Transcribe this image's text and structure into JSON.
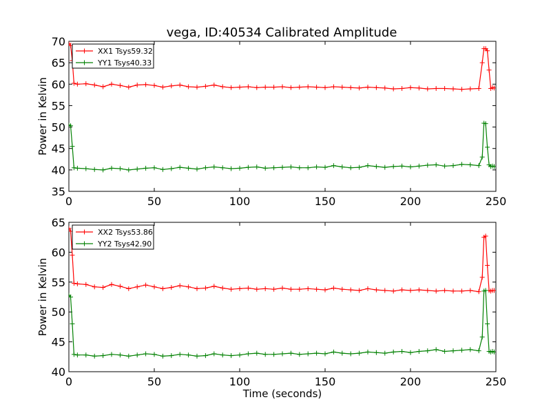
{
  "chart_data": [
    {
      "type": "line",
      "title": "vega, ID:40534 Calibrated Amplitude",
      "xlabel": "",
      "ylabel": "Power in Kelvin",
      "xlim": [
        0,
        250
      ],
      "ylim": [
        35,
        70
      ],
      "xticks": [
        "0",
        "50",
        "100",
        "150",
        "200",
        "250"
      ],
      "yticks": [
        "35",
        "40",
        "45",
        "50",
        "55",
        "60",
        "65",
        "70"
      ],
      "legend_position": "top-left",
      "grid": false,
      "series": [
        {
          "name": "XX1 Tsys59.32",
          "color": "#ff0000",
          "x": [
            0,
            1,
            2,
            3,
            5,
            10,
            15,
            20,
            25,
            30,
            35,
            40,
            45,
            50,
            55,
            60,
            65,
            70,
            75,
            80,
            85,
            90,
            95,
            100,
            105,
            110,
            115,
            120,
            125,
            130,
            135,
            140,
            145,
            150,
            155,
            160,
            165,
            170,
            175,
            180,
            185,
            190,
            195,
            200,
            205,
            210,
            215,
            220,
            225,
            230,
            235,
            240,
            242,
            243,
            244,
            245,
            246,
            247,
            248,
            249
          ],
          "y": [
            69.5,
            69.0,
            65.5,
            60.2,
            60.0,
            60.1,
            59.8,
            59.4,
            60.0,
            59.7,
            59.3,
            59.8,
            59.9,
            59.7,
            59.3,
            59.6,
            59.8,
            59.4,
            59.3,
            59.5,
            59.8,
            59.4,
            59.2,
            59.3,
            59.4,
            59.2,
            59.3,
            59.3,
            59.4,
            59.2,
            59.3,
            59.4,
            59.3,
            59.2,
            59.4,
            59.3,
            59.2,
            59.1,
            59.3,
            59.2,
            59.1,
            58.9,
            59.0,
            59.2,
            59.1,
            58.9,
            59.0,
            59.0,
            58.9,
            58.8,
            58.9,
            59.0,
            65.0,
            68.3,
            68.3,
            67.8,
            63.3,
            59.0,
            59.2,
            59.1
          ]
        },
        {
          "name": "YY1 Tsys40.33",
          "color": "#008000",
          "x": [
            0,
            1,
            2,
            3,
            5,
            10,
            15,
            20,
            25,
            30,
            35,
            40,
            45,
            50,
            55,
            60,
            65,
            70,
            75,
            80,
            85,
            90,
            95,
            100,
            105,
            110,
            115,
            120,
            125,
            130,
            135,
            140,
            145,
            150,
            155,
            160,
            165,
            170,
            175,
            180,
            185,
            190,
            195,
            200,
            205,
            210,
            215,
            220,
            225,
            230,
            235,
            240,
            242,
            243,
            244,
            245,
            246,
            247,
            248,
            249
          ],
          "y": [
            50.5,
            50.3,
            45.5,
            40.5,
            40.4,
            40.3,
            40.1,
            40.0,
            40.4,
            40.3,
            40.0,
            40.2,
            40.4,
            40.5,
            40.1,
            40.3,
            40.6,
            40.4,
            40.2,
            40.5,
            40.7,
            40.5,
            40.3,
            40.4,
            40.6,
            40.7,
            40.4,
            40.5,
            40.6,
            40.7,
            40.5,
            40.5,
            40.7,
            40.6,
            41.0,
            40.7,
            40.5,
            40.6,
            41.0,
            40.8,
            40.6,
            40.8,
            40.9,
            40.7,
            40.9,
            41.1,
            41.2,
            40.9,
            41.0,
            41.3,
            41.2,
            41.0,
            43.0,
            50.9,
            50.8,
            45.3,
            41.2,
            40.8,
            40.9,
            40.8
          ]
        }
      ]
    },
    {
      "type": "line",
      "title": "",
      "xlabel": "Time (seconds)",
      "ylabel": "Power in Kelvin",
      "xlim": [
        0,
        250
      ],
      "ylim": [
        40,
        65
      ],
      "xticks": [
        "0",
        "50",
        "100",
        "150",
        "200",
        "250"
      ],
      "yticks": [
        "40",
        "45",
        "50",
        "55",
        "60",
        "65"
      ],
      "legend_position": "top-left",
      "grid": false,
      "series": [
        {
          "name": "XX2 Tsys53.86",
          "color": "#ff0000",
          "x": [
            0,
            1,
            2,
            3,
            5,
            10,
            15,
            20,
            25,
            30,
            35,
            40,
            45,
            50,
            55,
            60,
            65,
            70,
            75,
            80,
            85,
            90,
            95,
            100,
            105,
            110,
            115,
            120,
            125,
            130,
            135,
            140,
            145,
            150,
            155,
            160,
            165,
            170,
            175,
            180,
            185,
            190,
            195,
            200,
            205,
            210,
            215,
            220,
            225,
            230,
            235,
            240,
            242,
            243,
            244,
            245,
            246,
            247,
            248,
            249
          ],
          "y": [
            64.0,
            63.5,
            59.5,
            54.8,
            54.7,
            54.6,
            54.2,
            54.1,
            54.6,
            54.3,
            53.9,
            54.2,
            54.5,
            54.2,
            53.9,
            54.1,
            54.4,
            54.2,
            53.9,
            54.0,
            54.3,
            54.0,
            53.8,
            53.9,
            54.0,
            53.8,
            53.9,
            53.8,
            54.0,
            53.8,
            53.8,
            53.9,
            53.8,
            53.7,
            54.0,
            53.8,
            53.7,
            53.6,
            53.9,
            53.7,
            53.6,
            53.5,
            53.7,
            53.6,
            53.7,
            53.6,
            53.5,
            53.6,
            53.5,
            53.5,
            53.6,
            53.4,
            55.8,
            62.5,
            62.7,
            57.8,
            53.6,
            53.5,
            53.6,
            53.6
          ]
        },
        {
          "name": "YY2 Tsys42.90",
          "color": "#008000",
          "x": [
            0,
            1,
            2,
            3,
            5,
            10,
            15,
            20,
            25,
            30,
            35,
            40,
            45,
            50,
            55,
            60,
            65,
            70,
            75,
            80,
            85,
            90,
            95,
            100,
            105,
            110,
            115,
            120,
            125,
            130,
            135,
            140,
            145,
            150,
            155,
            160,
            165,
            170,
            175,
            180,
            185,
            190,
            195,
            200,
            205,
            210,
            215,
            220,
            225,
            230,
            235,
            240,
            242,
            243,
            244,
            245,
            246,
            247,
            248,
            249
          ],
          "y": [
            52.8,
            52.5,
            48.0,
            42.9,
            42.8,
            42.8,
            42.6,
            42.7,
            42.9,
            42.8,
            42.6,
            42.8,
            43.0,
            42.9,
            42.6,
            42.7,
            42.9,
            42.8,
            42.6,
            42.7,
            43.0,
            42.8,
            42.7,
            42.8,
            43.0,
            43.1,
            42.9,
            42.9,
            43.0,
            43.1,
            42.9,
            43.0,
            43.1,
            43.0,
            43.3,
            43.1,
            43.0,
            43.1,
            43.3,
            43.2,
            43.1,
            43.3,
            43.4,
            43.2,
            43.4,
            43.5,
            43.7,
            43.4,
            43.5,
            43.6,
            43.7,
            43.5,
            45.8,
            53.5,
            53.6,
            48.0,
            43.4,
            43.3,
            43.4,
            43.3
          ]
        }
      ]
    }
  ]
}
